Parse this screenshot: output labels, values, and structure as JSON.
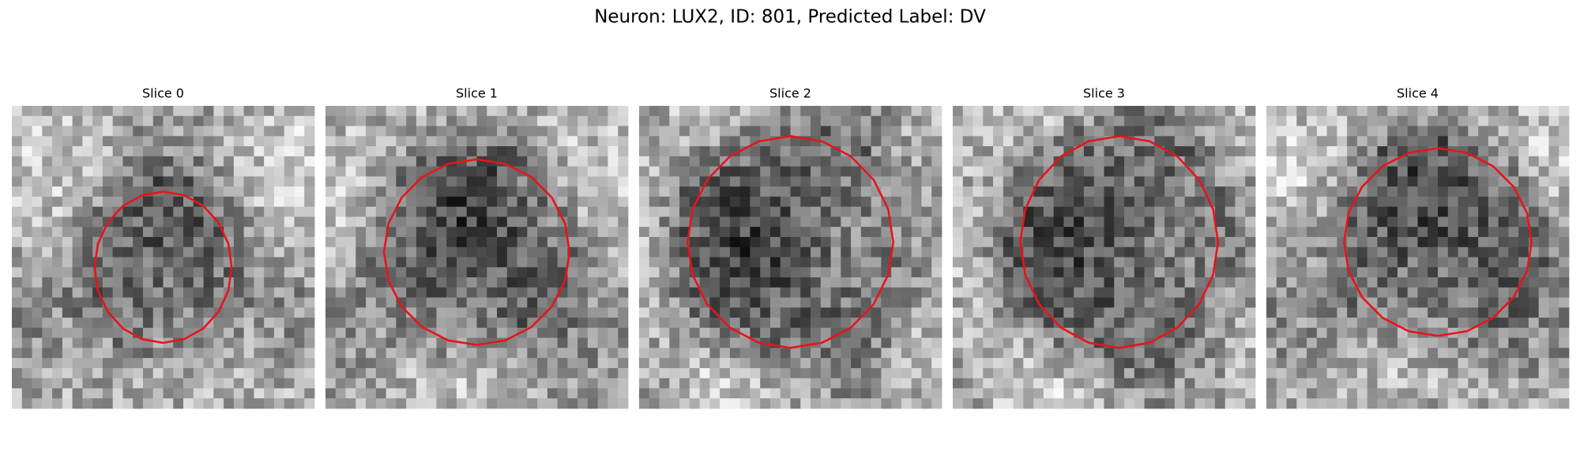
{
  "header": {
    "title": "Neuron: LUX2, ID: 801, Predicted Label: DV"
  },
  "panels": [
    {
      "title": "Slice 0"
    },
    {
      "title": "Slice 1"
    },
    {
      "title": "Slice 2"
    },
    {
      "title": "Slice 3"
    },
    {
      "title": "Slice 4"
    }
  ]
}
